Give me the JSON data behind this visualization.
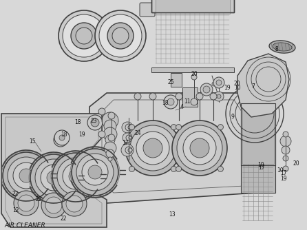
{
  "bg_color": "#e8e8e8",
  "line_color": "#404040",
  "title": "AIR CLEANER",
  "figsize": [
    4.46,
    3.34
  ],
  "dpi": 100
}
